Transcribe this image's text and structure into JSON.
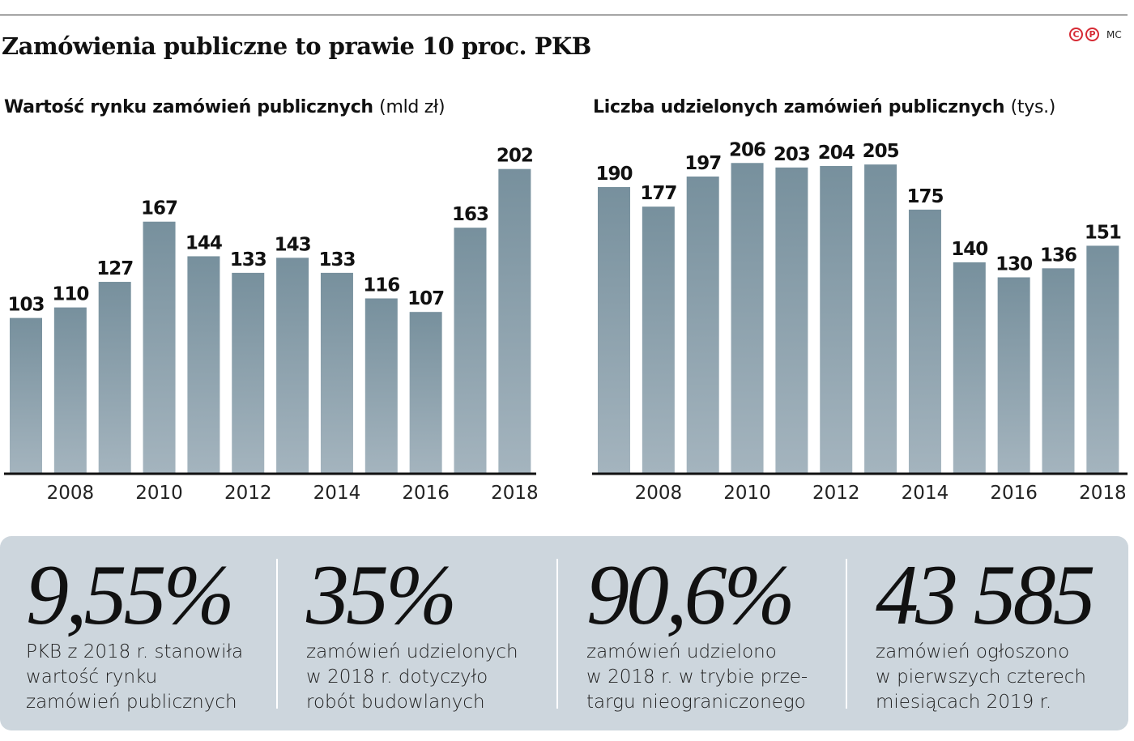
{
  "title": "Zamówienia publiczne to prawie 10 proc. PKB",
  "credit": {
    "icons": [
      "copyright-icon",
      "phonogram-icon"
    ],
    "c": "C",
    "p": "P",
    "author": "MC"
  },
  "chart_data": [
    {
      "type": "bar",
      "title": "Wartość rynku zamówień publicznych",
      "unit": "(mld zł)",
      "categories": [
        "2007",
        "2008",
        "2009",
        "2010",
        "2011",
        "2012",
        "2013",
        "2014",
        "2015",
        "2016",
        "2017",
        "2018"
      ],
      "tick_labels": [
        "2008",
        "2010",
        "2012",
        "2014",
        "2016",
        "2018"
      ],
      "values": [
        103,
        110,
        127,
        167,
        144,
        133,
        143,
        133,
        116,
        107,
        163,
        202
      ],
      "ylim": [
        0,
        202
      ],
      "grid": false,
      "bar_color_top": "#77909d",
      "bar_color_bottom": "#a4b4be"
    },
    {
      "type": "bar",
      "title": "Liczba udzielonych zamówień publicznych",
      "unit": "(tys.)",
      "categories": [
        "2007",
        "2008",
        "2009",
        "2010",
        "2011",
        "2012",
        "2013",
        "2014",
        "2015",
        "2016",
        "2017",
        "2018"
      ],
      "tick_labels": [
        "2008",
        "2010",
        "2012",
        "2014",
        "2016",
        "2018"
      ],
      "values": [
        190,
        177,
        197,
        206,
        203,
        204,
        205,
        175,
        140,
        130,
        136,
        151
      ],
      "ylim": [
        0,
        206
      ],
      "grid": false,
      "bar_color_top": "#77909d",
      "bar_color_bottom": "#a4b4be"
    }
  ],
  "stats": [
    {
      "value": "9,55%",
      "lines": [
        "PKB z 2018 r. stanowiła",
        "wartość rynku",
        "zamówień publicznych"
      ]
    },
    {
      "value": "35%",
      "lines": [
        "zamówień udzielonych",
        "w 2018 r. dotyczyło",
        "robót budowlanych"
      ]
    },
    {
      "value": "90,6%",
      "lines": [
        "zamówień udzielono",
        "w 2018 r. w trybie prze-",
        "targu nieograniczonego"
      ]
    },
    {
      "value": "43 585",
      "lines": [
        "zamówień ogłoszono",
        "w pierwszych czterech",
        "miesiącach 2019 r."
      ]
    }
  ]
}
